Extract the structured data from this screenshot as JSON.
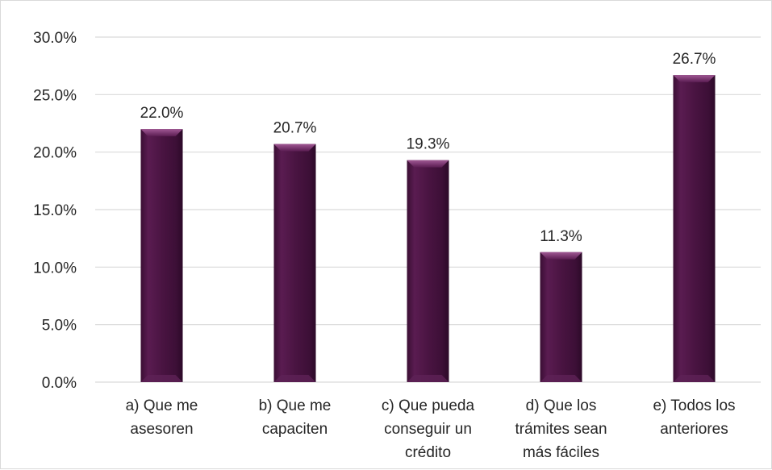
{
  "chart_data": {
    "type": "bar",
    "categories": [
      [
        "a) Que me",
        "asesoren"
      ],
      [
        "b) Que me",
        "capaciten"
      ],
      [
        "c) Que pueda",
        "conseguir un",
        "crédito"
      ],
      [
        "d) Que los",
        "trámites sean",
        "más fáciles"
      ],
      [
        "e) Todos los",
        "anteriores"
      ]
    ],
    "values": [
      22.0,
      20.7,
      19.3,
      11.3,
      26.7
    ],
    "data_labels": [
      "22.0%",
      "20.7%",
      "19.3%",
      "11.3%",
      "26.7%"
    ],
    "y_ticks": [
      0,
      5,
      10,
      15,
      20,
      25,
      30
    ],
    "y_tick_labels": [
      "0.0%",
      "5.0%",
      "10.0%",
      "15.0%",
      "20.0%",
      "25.0%",
      "30.0%"
    ],
    "ylim": [
      0,
      30
    ],
    "title": "",
    "xlabel": "",
    "ylabel": "",
    "grid": true,
    "legend": "none",
    "bar_color": "#4a1442",
    "bar_highlight": "#8a3f7f",
    "gridline_color": "#d9d9d9"
  }
}
